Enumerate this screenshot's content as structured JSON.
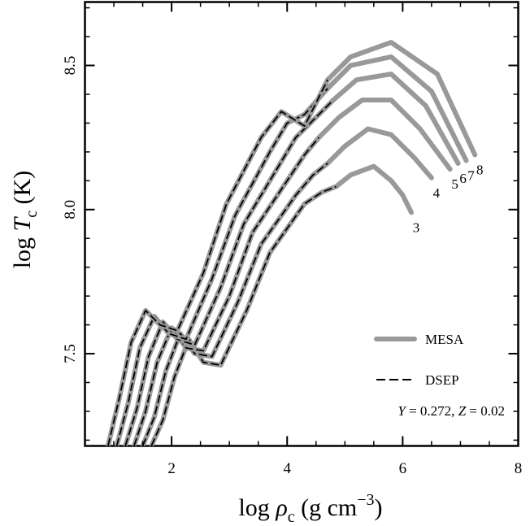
{
  "chart_data": {
    "type": "line",
    "title": "",
    "xlabel": "log ρ_c (g cm^-3)",
    "ylabel": "log T_c (K)",
    "xlabel_parts": {
      "pre": "log ",
      "sym": "ρ",
      "sub": "c",
      "post": " (g cm",
      "sup": "−3",
      "close": ")"
    },
    "ylabel_parts": {
      "pre": "log ",
      "sym": "T",
      "sub": "c",
      "post": " (K)"
    },
    "xlim": [
      0.5,
      8.0
    ],
    "ylim": [
      7.18,
      8.72
    ],
    "xticks": [
      2,
      4,
      6,
      8
    ],
    "xticklabels": [
      "2",
      "4",
      "6",
      "8"
    ],
    "yticks": [
      7.5,
      8.0,
      8.5
    ],
    "yticklabels": [
      "7.5",
      "8.0",
      "8.5"
    ],
    "grid": false,
    "legend": {
      "location": "bottom-right",
      "entries": [
        {
          "name": "MESA",
          "style": "solid",
          "color": "#999999"
        },
        {
          "name": "DSEP",
          "style": "dashed",
          "color": "#000000"
        }
      ]
    },
    "annotation": "Y = 0.272, Z = 0.02",
    "annotation_parts": {
      "y": "Y",
      "yval": " = 0.272, ",
      "z": "Z",
      "zval": " = 0.02"
    },
    "series": [
      {
        "mass_label": "3",
        "end": [
          6.15,
          7.99
        ],
        "points": [
          [
            1.65,
            7.18
          ],
          [
            1.85,
            7.27
          ],
          [
            2.05,
            7.42
          ],
          [
            2.3,
            7.55
          ],
          [
            2.55,
            7.47
          ],
          [
            2.85,
            7.46
          ],
          [
            3.3,
            7.65
          ],
          [
            3.7,
            7.85
          ],
          [
            4.3,
            8.02
          ],
          [
            4.6,
            8.06
          ],
          [
            4.85,
            8.08
          ],
          [
            5.1,
            8.12
          ],
          [
            5.5,
            8.15
          ],
          [
            5.8,
            8.1
          ],
          [
            6.0,
            8.05
          ],
          [
            6.15,
            7.99
          ]
        ]
      },
      {
        "mass_label": "4",
        "end": [
          6.5,
          8.11
        ],
        "points": [
          [
            1.5,
            7.18
          ],
          [
            1.7,
            7.28
          ],
          [
            1.9,
            7.44
          ],
          [
            2.15,
            7.57
          ],
          [
            2.4,
            7.5
          ],
          [
            2.7,
            7.49
          ],
          [
            3.15,
            7.68
          ],
          [
            3.55,
            7.88
          ],
          [
            4.15,
            8.05
          ],
          [
            4.45,
            8.12
          ],
          [
            4.7,
            8.16
          ],
          [
            5.0,
            8.22
          ],
          [
            5.4,
            8.28
          ],
          [
            5.8,
            8.26
          ],
          [
            6.2,
            8.18
          ],
          [
            6.5,
            8.11
          ]
        ]
      },
      {
        "mass_label": "5",
        "end": [
          6.82,
          8.14
        ],
        "points": [
          [
            1.35,
            7.18
          ],
          [
            1.55,
            7.3
          ],
          [
            1.75,
            7.47
          ],
          [
            2.0,
            7.59
          ],
          [
            2.25,
            7.52
          ],
          [
            2.55,
            7.51
          ],
          [
            3.0,
            7.7
          ],
          [
            3.4,
            7.92
          ],
          [
            4.0,
            8.1
          ],
          [
            4.3,
            8.19
          ],
          [
            4.55,
            8.25
          ],
          [
            4.9,
            8.32
          ],
          [
            5.3,
            8.38
          ],
          [
            5.8,
            8.38
          ],
          [
            6.3,
            8.28
          ],
          [
            6.82,
            8.14
          ]
        ]
      },
      {
        "mass_label": "6",
        "end": [
          6.96,
          8.16
        ],
        "points": [
          [
            1.2,
            7.18
          ],
          [
            1.4,
            7.31
          ],
          [
            1.6,
            7.49
          ],
          [
            1.85,
            7.61
          ],
          [
            2.1,
            7.55
          ],
          [
            2.4,
            7.53
          ],
          [
            2.85,
            7.73
          ],
          [
            3.25,
            7.95
          ],
          [
            3.85,
            8.15
          ],
          [
            4.15,
            8.25
          ],
          [
            4.4,
            8.3
          ],
          [
            4.8,
            8.38
          ],
          [
            5.2,
            8.45
          ],
          [
            5.8,
            8.47
          ],
          [
            6.4,
            8.36
          ],
          [
            6.96,
            8.16
          ]
        ]
      },
      {
        "mass_label": "7",
        "end": [
          7.1,
          8.17
        ],
        "points": [
          [
            1.05,
            7.18
          ],
          [
            1.25,
            7.33
          ],
          [
            1.45,
            7.52
          ],
          [
            1.7,
            7.63
          ],
          [
            1.95,
            7.57
          ],
          [
            2.25,
            7.55
          ],
          [
            2.7,
            7.76
          ],
          [
            3.1,
            7.98
          ],
          [
            3.7,
            8.2
          ],
          [
            4.0,
            8.3
          ],
          [
            4.3,
            8.33
          ],
          [
            4.7,
            8.42
          ],
          [
            5.1,
            8.5
          ],
          [
            5.8,
            8.53
          ],
          [
            6.5,
            8.41
          ],
          [
            7.1,
            8.17
          ]
        ]
      },
      {
        "mass_label": "8",
        "end": [
          7.25,
          8.19
        ],
        "points": [
          [
            0.9,
            7.18
          ],
          [
            1.1,
            7.35
          ],
          [
            1.3,
            7.54
          ],
          [
            1.55,
            7.65
          ],
          [
            1.8,
            7.6
          ],
          [
            2.1,
            7.58
          ],
          [
            2.55,
            7.78
          ],
          [
            2.95,
            8.02
          ],
          [
            3.55,
            8.25
          ],
          [
            3.9,
            8.34
          ],
          [
            4.3,
            8.29
          ],
          [
            4.7,
            8.45
          ],
          [
            5.1,
            8.53
          ],
          [
            5.8,
            8.58
          ],
          [
            6.6,
            8.47
          ],
          [
            7.25,
            8.19
          ]
        ]
      }
    ]
  }
}
